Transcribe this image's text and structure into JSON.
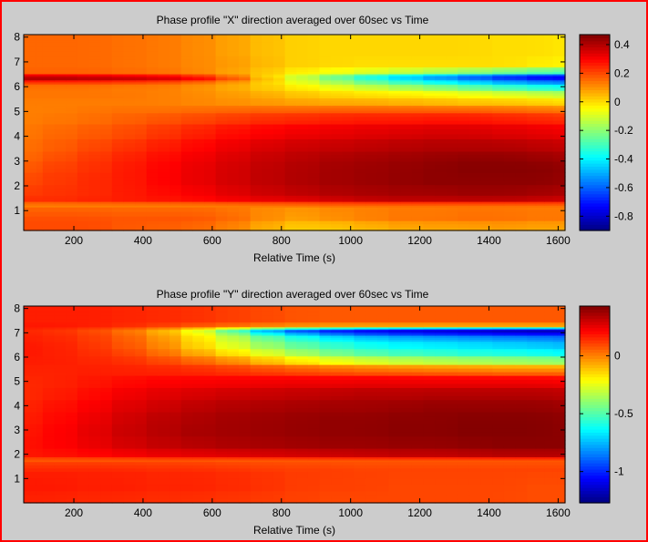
{
  "window": {
    "border_color": "#ff0000",
    "background": "#cccccc"
  },
  "chart_data": [
    {
      "type": "heatmap",
      "title": "Phase profile \"X\" direction averaged over 60sec vs Time",
      "xlabel": "Relative Time (s)",
      "ylabel": "",
      "xlim": [
        55,
        1620
      ],
      "ylim": [
        0.2,
        8.1
      ],
      "xticks": [
        200,
        400,
        600,
        800,
        1000,
        1200,
        1400,
        1600
      ],
      "yticks": [
        1,
        2,
        3,
        4,
        5,
        6,
        7,
        8
      ],
      "colorbar": {
        "clim": [
          -0.9,
          0.47
        ],
        "ticks": [
          0.4,
          0.2,
          0,
          -0.2,
          -0.4,
          -0.6,
          -0.8
        ],
        "tick_labels": [
          "0.4",
          "0.2",
          "0",
          "-0.2",
          "-0.4",
          "-0.6",
          "-0.8"
        ],
        "colormap": "jet"
      },
      "grid_x": [
        60,
        160,
        260,
        360,
        460,
        560,
        660,
        760,
        860,
        960,
        1060,
        1160,
        1260,
        1360,
        1460,
        1560,
        1610
      ],
      "grid_y": [
        0.2,
        1.0,
        1.3,
        1.45,
        1.8,
        2.3,
        2.8,
        3.2,
        3.6,
        4.2,
        4.8,
        5.1,
        5.4,
        5.7,
        6.0,
        6.2,
        6.35,
        6.45,
        6.6,
        7.0,
        7.5,
        8.1
      ],
      "z": [
        [
          0.2,
          0.2,
          0.2,
          0.18,
          0.17,
          0.16,
          0.13,
          0.07,
          0.02,
          0.02,
          0.04,
          0.06,
          0.07,
          0.07,
          0.08,
          0.07,
          0.07
        ],
        [
          0.2,
          0.2,
          0.2,
          0.19,
          0.19,
          0.19,
          0.17,
          0.12,
          0.08,
          0.1,
          0.12,
          0.14,
          0.14,
          0.15,
          0.15,
          0.14,
          0.14
        ],
        [
          0.12,
          0.12,
          0.12,
          0.12,
          0.12,
          0.12,
          0.12,
          0.12,
          0.12,
          0.13,
          0.13,
          0.13,
          0.13,
          0.13,
          0.13,
          0.13,
          0.13
        ],
        [
          0.24,
          0.24,
          0.25,
          0.26,
          0.27,
          0.28,
          0.3,
          0.32,
          0.33,
          0.35,
          0.37,
          0.38,
          0.38,
          0.38,
          0.38,
          0.37,
          0.36
        ],
        [
          0.22,
          0.23,
          0.24,
          0.26,
          0.28,
          0.3,
          0.33,
          0.36,
          0.38,
          0.4,
          0.41,
          0.42,
          0.42,
          0.43,
          0.43,
          0.42,
          0.41
        ],
        [
          0.2,
          0.22,
          0.24,
          0.26,
          0.29,
          0.32,
          0.35,
          0.38,
          0.4,
          0.42,
          0.43,
          0.44,
          0.45,
          0.45,
          0.45,
          0.45,
          0.44
        ],
        [
          0.18,
          0.21,
          0.23,
          0.26,
          0.29,
          0.32,
          0.35,
          0.38,
          0.4,
          0.42,
          0.43,
          0.44,
          0.45,
          0.46,
          0.46,
          0.46,
          0.45
        ],
        [
          0.16,
          0.19,
          0.22,
          0.25,
          0.28,
          0.31,
          0.34,
          0.37,
          0.39,
          0.41,
          0.42,
          0.43,
          0.44,
          0.45,
          0.45,
          0.44,
          0.43
        ],
        [
          0.15,
          0.17,
          0.2,
          0.23,
          0.26,
          0.29,
          0.32,
          0.35,
          0.37,
          0.38,
          0.39,
          0.4,
          0.41,
          0.41,
          0.41,
          0.4,
          0.39
        ],
        [
          0.14,
          0.16,
          0.18,
          0.2,
          0.23,
          0.26,
          0.29,
          0.31,
          0.33,
          0.34,
          0.35,
          0.36,
          0.37,
          0.37,
          0.36,
          0.35,
          0.34
        ],
        [
          0.13,
          0.14,
          0.15,
          0.17,
          0.19,
          0.21,
          0.23,
          0.25,
          0.26,
          0.27,
          0.28,
          0.28,
          0.29,
          0.29,
          0.28,
          0.27,
          0.26
        ],
        [
          0.13,
          0.13,
          0.14,
          0.15,
          0.15,
          0.16,
          0.17,
          0.18,
          0.18,
          0.19,
          0.19,
          0.19,
          0.19,
          0.19,
          0.18,
          0.17,
          0.16
        ],
        [
          0.13,
          0.13,
          0.13,
          0.13,
          0.13,
          0.12,
          0.11,
          0.1,
          0.09,
          0.08,
          0.08,
          0.07,
          0.06,
          0.05,
          0.05,
          0.04,
          0.03
        ],
        [
          0.14,
          0.14,
          0.14,
          0.14,
          0.13,
          0.12,
          0.1,
          0.08,
          0.05,
          0.03,
          0.02,
          0.01,
          0.0,
          -0.02,
          -0.04,
          -0.06,
          -0.08
        ],
        [
          0.14,
          0.14,
          0.14,
          0.13,
          0.13,
          0.11,
          0.08,
          0.04,
          0.0,
          -0.04,
          -0.08,
          -0.12,
          -0.16,
          -0.2,
          -0.24,
          -0.28,
          -0.3
        ],
        [
          0.18,
          0.18,
          0.18,
          0.17,
          0.16,
          0.13,
          0.09,
          0.03,
          -0.05,
          -0.12,
          -0.2,
          -0.26,
          -0.32,
          -0.38,
          -0.44,
          -0.48,
          -0.5
        ],
        [
          0.4,
          0.4,
          0.39,
          0.38,
          0.36,
          0.32,
          0.22,
          0.08,
          -0.08,
          -0.2,
          -0.3,
          -0.4,
          -0.48,
          -0.55,
          -0.62,
          -0.68,
          -0.7
        ],
        [
          0.38,
          0.38,
          0.37,
          0.35,
          0.33,
          0.28,
          0.18,
          0.05,
          -0.1,
          -0.22,
          -0.34,
          -0.44,
          -0.52,
          -0.6,
          -0.68,
          -0.74,
          -0.76
        ],
        [
          0.17,
          0.17,
          0.17,
          0.16,
          0.15,
          0.13,
          0.09,
          0.04,
          -0.02,
          -0.06,
          -0.1,
          -0.14,
          -0.18,
          -0.22,
          -0.26,
          -0.3,
          -0.32
        ],
        [
          0.16,
          0.16,
          0.16,
          0.15,
          0.14,
          0.12,
          0.1,
          0.06,
          0.02,
          0.01,
          0.0,
          0.0,
          0.0,
          0.0,
          0.0,
          -0.02,
          -0.03
        ],
        [
          0.16,
          0.16,
          0.16,
          0.15,
          0.14,
          0.12,
          0.09,
          0.05,
          0.02,
          0.01,
          0.01,
          0.01,
          0.01,
          0.01,
          0.0,
          0.0,
          -0.01
        ],
        [
          0.16,
          0.16,
          0.16,
          0.15,
          0.14,
          0.12,
          0.09,
          0.05,
          0.02,
          0.01,
          0.01,
          0.01,
          0.01,
          0.01,
          0.0,
          0.0,
          -0.01
        ]
      ]
    },
    {
      "type": "heatmap",
      "title": "Phase profile \"Y\" direction averaged over 60sec vs Time",
      "xlabel": "Relative Time (s)",
      "ylabel": "",
      "xlim": [
        55,
        1620
      ],
      "ylim": [
        0.0,
        8.1
      ],
      "xticks": [
        200,
        400,
        600,
        800,
        1000,
        1200,
        1400,
        1600
      ],
      "yticks": [
        1,
        2,
        3,
        4,
        5,
        6,
        7,
        8
      ],
      "colorbar": {
        "clim": [
          -1.27,
          0.43
        ],
        "ticks": [
          0,
          -0.5,
          -1
        ],
        "tick_labels": [
          "0",
          "-0.5",
          "-1"
        ],
        "colormap": "jet"
      },
      "grid_x": [
        60,
        160,
        260,
        360,
        460,
        560,
        660,
        760,
        860,
        960,
        1060,
        1160,
        1260,
        1360,
        1460,
        1560,
        1610
      ],
      "grid_y": [
        0.0,
        1.0,
        1.6,
        1.8,
        2.0,
        2.5,
        3.0,
        3.5,
        4.0,
        4.5,
        5.0,
        5.5,
        5.9,
        6.2,
        6.5,
        6.8,
        7.0,
        7.1,
        7.2,
        7.3,
        7.6,
        8.1
      ],
      "z": [
        [
          0.16,
          0.16,
          0.15,
          0.15,
          0.14,
          0.14,
          0.13,
          0.12,
          0.11,
          0.1,
          0.1,
          0.1,
          0.1,
          0.1,
          0.1,
          0.09,
          0.09
        ],
        [
          0.18,
          0.18,
          0.17,
          0.17,
          0.16,
          0.16,
          0.15,
          0.14,
          0.12,
          0.11,
          0.11,
          0.1,
          0.1,
          0.1,
          0.1,
          0.09,
          0.09
        ],
        [
          0.16,
          0.16,
          0.16,
          0.16,
          0.15,
          0.15,
          0.14,
          0.13,
          0.12,
          0.12,
          0.11,
          0.11,
          0.11,
          0.11,
          0.11,
          0.11,
          0.11
        ],
        [
          0.06,
          0.06,
          0.06,
          0.06,
          0.06,
          0.06,
          0.05,
          0.05,
          0.05,
          0.05,
          0.05,
          0.05,
          0.05,
          0.05,
          0.05,
          0.05,
          0.05
        ],
        [
          0.18,
          0.19,
          0.2,
          0.22,
          0.24,
          0.25,
          0.26,
          0.27,
          0.28,
          0.29,
          0.3,
          0.31,
          0.31,
          0.32,
          0.33,
          0.33,
          0.33
        ],
        [
          0.19,
          0.21,
          0.24,
          0.28,
          0.31,
          0.33,
          0.35,
          0.36,
          0.37,
          0.38,
          0.38,
          0.39,
          0.39,
          0.4,
          0.41,
          0.41,
          0.41
        ],
        [
          0.18,
          0.21,
          0.25,
          0.3,
          0.33,
          0.36,
          0.37,
          0.38,
          0.39,
          0.4,
          0.4,
          0.41,
          0.41,
          0.42,
          0.42,
          0.42,
          0.41
        ],
        [
          0.17,
          0.2,
          0.24,
          0.29,
          0.33,
          0.35,
          0.37,
          0.38,
          0.39,
          0.4,
          0.4,
          0.41,
          0.41,
          0.42,
          0.42,
          0.42,
          0.41
        ],
        [
          0.16,
          0.19,
          0.22,
          0.27,
          0.3,
          0.33,
          0.35,
          0.36,
          0.37,
          0.38,
          0.38,
          0.39,
          0.4,
          0.4,
          0.4,
          0.4,
          0.39
        ],
        [
          0.15,
          0.17,
          0.2,
          0.24,
          0.27,
          0.29,
          0.31,
          0.32,
          0.33,
          0.34,
          0.35,
          0.35,
          0.36,
          0.36,
          0.36,
          0.36,
          0.35
        ],
        [
          0.15,
          0.16,
          0.18,
          0.21,
          0.23,
          0.24,
          0.25,
          0.26,
          0.27,
          0.27,
          0.28,
          0.28,
          0.28,
          0.28,
          0.28,
          0.28,
          0.27
        ],
        [
          0.16,
          0.16,
          0.17,
          0.17,
          0.17,
          0.17,
          0.16,
          0.15,
          0.14,
          0.13,
          0.12,
          0.12,
          0.11,
          0.11,
          0.1,
          0.1,
          0.1
        ],
        [
          0.17,
          0.17,
          0.16,
          0.15,
          0.12,
          0.08,
          0.03,
          -0.05,
          -0.12,
          -0.18,
          -0.22,
          -0.26,
          -0.28,
          -0.3,
          -0.32,
          -0.33,
          -0.34
        ],
        [
          0.18,
          0.17,
          0.15,
          0.12,
          0.06,
          -0.03,
          -0.12,
          -0.22,
          -0.32,
          -0.4,
          -0.46,
          -0.5,
          -0.52,
          -0.55,
          -0.56,
          -0.58,
          -0.6
        ],
        [
          0.18,
          0.17,
          0.14,
          0.09,
          0.02,
          -0.1,
          -0.22,
          -0.34,
          -0.44,
          -0.52,
          -0.58,
          -0.62,
          -0.64,
          -0.66,
          -0.68,
          -0.7,
          -0.72
        ],
        [
          0.17,
          0.16,
          0.13,
          0.08,
          0.0,
          -0.12,
          -0.26,
          -0.4,
          -0.52,
          -0.6,
          -0.66,
          -0.7,
          -0.72,
          -0.74,
          -0.76,
          -0.78,
          -0.8
        ],
        [
          0.16,
          0.15,
          0.12,
          0.06,
          -0.03,
          -0.16,
          -0.32,
          -0.52,
          -0.68,
          -0.8,
          -0.88,
          -0.92,
          -0.95,
          -0.97,
          -0.99,
          -1.0,
          -1.0
        ],
        [
          0.15,
          0.14,
          0.1,
          0.04,
          -0.06,
          -0.22,
          -0.45,
          -0.75,
          -0.95,
          -1.05,
          -1.1,
          -1.14,
          -1.16,
          -1.18,
          -1.2,
          -1.22,
          -1.22
        ],
        [
          0.16,
          0.15,
          0.12,
          0.07,
          0.0,
          -0.12,
          -0.28,
          -0.5,
          -0.65,
          -0.75,
          -0.82,
          -0.86,
          -0.88,
          -0.9,
          -0.92,
          -0.92,
          -0.92
        ],
        [
          0.18,
          0.18,
          0.17,
          0.15,
          0.12,
          0.08,
          0.04,
          0.0,
          -0.03,
          -0.05,
          -0.06,
          -0.06,
          -0.07,
          -0.07,
          -0.07,
          -0.07,
          -0.07
        ],
        [
          0.17,
          0.17,
          0.17,
          0.16,
          0.15,
          0.14,
          0.12,
          0.1,
          0.08,
          0.07,
          0.07,
          0.07,
          0.07,
          0.07,
          0.07,
          0.07,
          0.07
        ],
        [
          0.17,
          0.17,
          0.17,
          0.16,
          0.15,
          0.14,
          0.12,
          0.1,
          0.08,
          0.07,
          0.07,
          0.07,
          0.07,
          0.07,
          0.07,
          0.07,
          0.07
        ]
      ]
    }
  ]
}
